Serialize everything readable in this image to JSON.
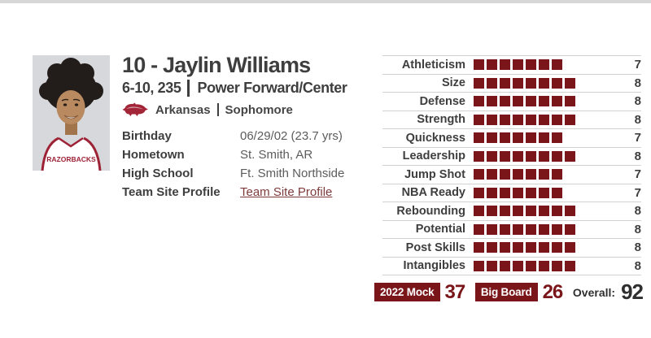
{
  "colors": {
    "maroon": "#7a161a",
    "logo_red": "#a32638",
    "text_dark": "#3e3e3e",
    "text_gray": "#5c5c5c",
    "link": "#7d3a3a",
    "separator": "#d2d2d2"
  },
  "player": {
    "title": "10 - Jaylin Williams",
    "measurements": "6-10, 235",
    "position": "Power Forward/Center",
    "team": "Arkansas",
    "class_year": "Sophomore",
    "jersey_text": "RAZORBACKS"
  },
  "details": [
    {
      "label": "Birthday",
      "value": "06/29/02 (23.7 yrs)",
      "is_link": false
    },
    {
      "label": "Hometown",
      "value": "St. Smith, AR",
      "is_link": false
    },
    {
      "label": "High School",
      "value": "Ft. Smith Northside",
      "is_link": false
    },
    {
      "label": "Team Site Profile",
      "value": "Team Site Profile",
      "is_link": true
    }
  ],
  "ratings": [
    {
      "label": "Athleticism",
      "value": 7
    },
    {
      "label": "Size",
      "value": 8
    },
    {
      "label": "Defense",
      "value": 8
    },
    {
      "label": "Strength",
      "value": 8
    },
    {
      "label": "Quickness",
      "value": 7
    },
    {
      "label": "Leadership",
      "value": 8
    },
    {
      "label": "Jump Shot",
      "value": 7
    },
    {
      "label": "NBA Ready",
      "value": 7
    },
    {
      "label": "Rebounding",
      "value": 8
    },
    {
      "label": "Potential",
      "value": 8
    },
    {
      "label": "Post Skills",
      "value": 8
    },
    {
      "label": "Intangibles",
      "value": 8
    }
  ],
  "footer": {
    "mock_label": "2022 Mock",
    "mock_value": "37",
    "board_label": "Big Board",
    "board_value": "26",
    "overall_label": "Overall:",
    "overall_value": "92"
  }
}
